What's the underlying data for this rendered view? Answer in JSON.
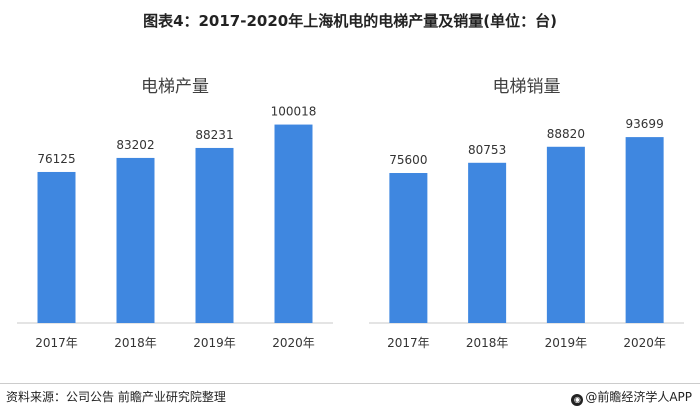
{
  "title": "图表4：2017-2020年上海机电的电梯产量及销量(单位：台)",
  "chart_data": [
    {
      "type": "bar",
      "title": "电梯产量",
      "categories": [
        "2017年",
        "2018年",
        "2019年",
        "2020年"
      ],
      "values": [
        76125,
        83202,
        88231,
        100018
      ],
      "ylim": [
        0,
        125000
      ],
      "grid": false,
      "bar_color": "#3f87e0"
    },
    {
      "type": "bar",
      "title": "电梯销量",
      "categories": [
        "2017年",
        "2018年",
        "2019年",
        "2020年"
      ],
      "values": [
        75600,
        80753,
        88820,
        93699
      ],
      "ylim": [
        0,
        125000
      ],
      "grid": false,
      "bar_color": "#3f87e0"
    }
  ],
  "footer": {
    "source": "资料来源：公司公告 前瞻产业研究院整理",
    "brand": "@前瞻经济学人APP",
    "brand_icon": "qianzhan-logo-icon"
  }
}
